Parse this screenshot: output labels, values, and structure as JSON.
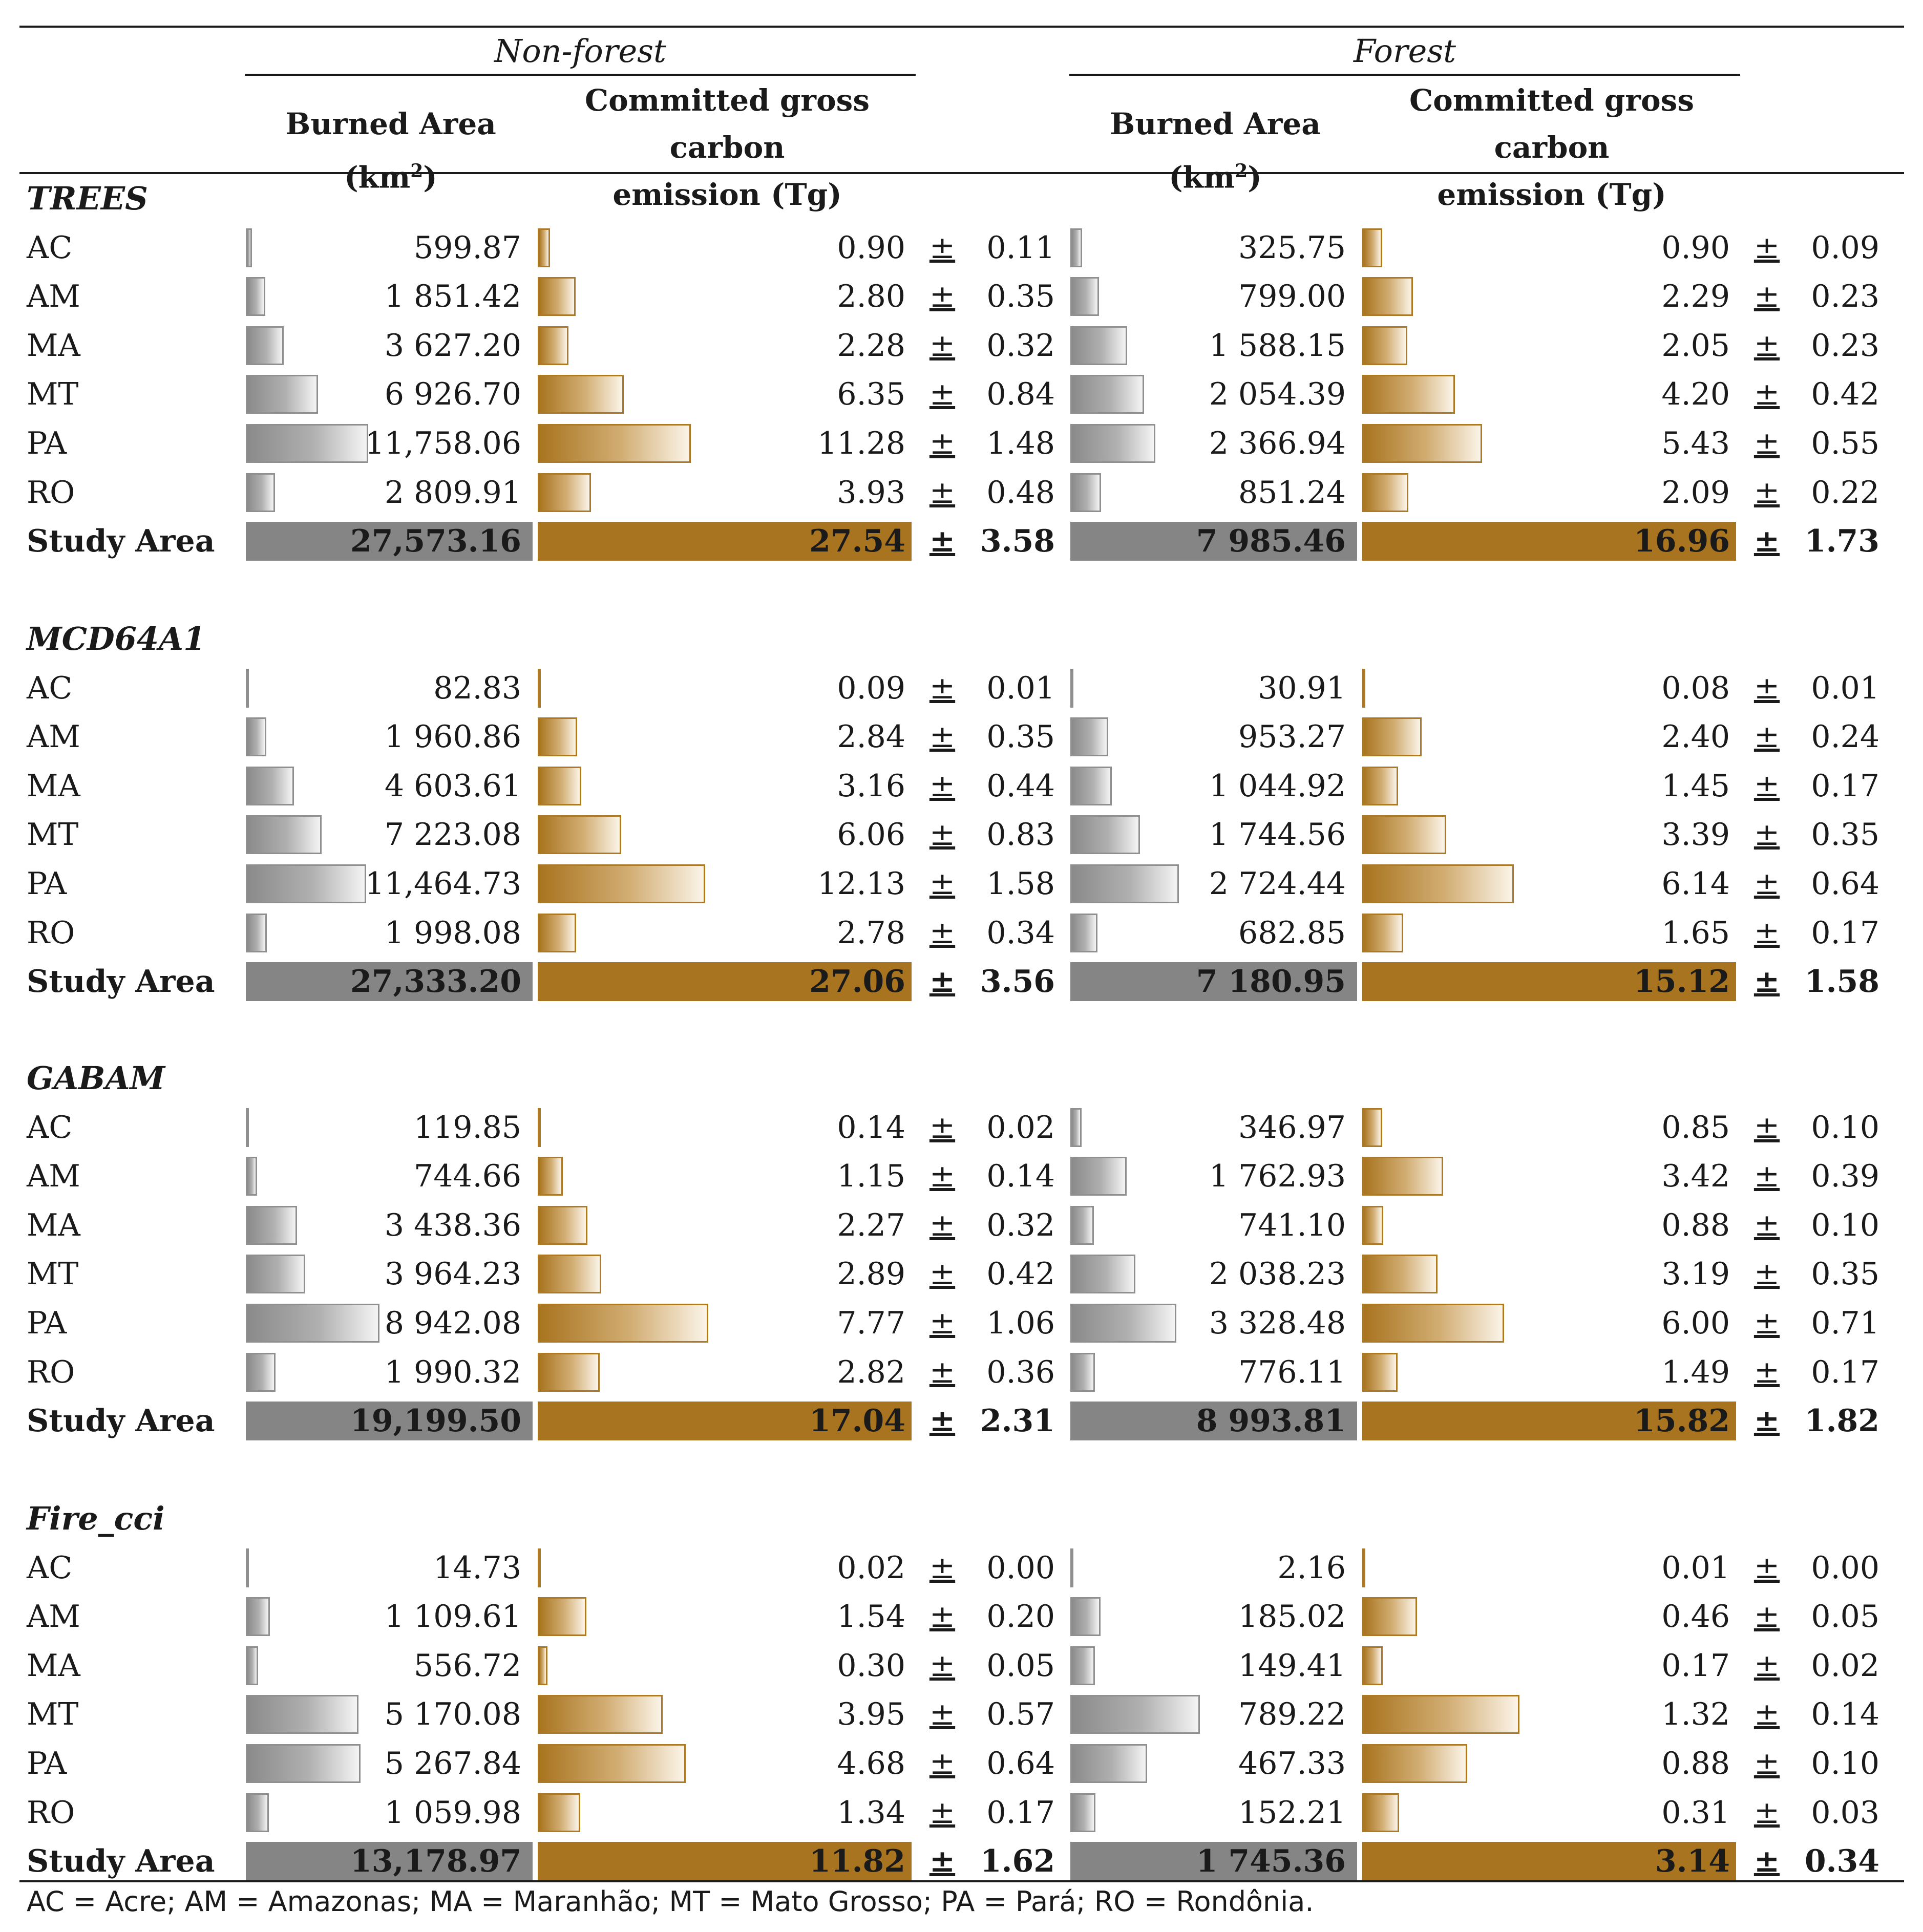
{
  "groups": {
    "non_forest": "Non-forest",
    "forest": "Forest"
  },
  "headers": {
    "burned_area_prefix": "Burned Area (km",
    "burned_area_sup": "2",
    "burned_area_suffix": ")",
    "emission_line1": "Committed gross carbon",
    "emission_line2": "emission (Tg)"
  },
  "pm_symbol": "±",
  "sections": [
    {
      "title": "TREES",
      "rows": [
        {
          "region": "AC",
          "nf_area": "599.87",
          "nf_area_v": 599.87,
          "nf_em": "0.90",
          "nf_em_v": 0.9,
          "nf_unc": "0.11",
          "f_area": "325.75",
          "f_area_v": 325.75,
          "f_em": "0.90",
          "f_em_v": 0.9,
          "f_unc": "0.09"
        },
        {
          "region": "AM",
          "nf_area": "1 851.42",
          "nf_area_v": 1851.42,
          "nf_em": "2.80",
          "nf_em_v": 2.8,
          "nf_unc": "0.35",
          "f_area": "799.00",
          "f_area_v": 799.0,
          "f_em": "2.29",
          "f_em_v": 2.29,
          "f_unc": "0.23"
        },
        {
          "region": "MA",
          "nf_area": "3 627.20",
          "nf_area_v": 3627.2,
          "nf_em": "2.28",
          "nf_em_v": 2.28,
          "nf_unc": "0.32",
          "f_area": "1 588.15",
          "f_area_v": 1588.15,
          "f_em": "2.05",
          "f_em_v": 2.05,
          "f_unc": "0.23"
        },
        {
          "region": "MT",
          "nf_area": "6 926.70",
          "nf_area_v": 6926.7,
          "nf_em": "6.35",
          "nf_em_v": 6.35,
          "nf_unc": "0.84",
          "f_area": "2 054.39",
          "f_area_v": 2054.39,
          "f_em": "4.20",
          "f_em_v": 4.2,
          "f_unc": "0.42"
        },
        {
          "region": "PA",
          "nf_area": "11,758.06",
          "nf_area_v": 11758.06,
          "nf_em": "11.28",
          "nf_em_v": 11.28,
          "nf_unc": "1.48",
          "f_area": "2 366.94",
          "f_area_v": 2366.94,
          "f_em": "5.43",
          "f_em_v": 5.43,
          "f_unc": "0.55"
        },
        {
          "region": "RO",
          "nf_area": "2 809.91",
          "nf_area_v": 2809.91,
          "nf_em": "3.93",
          "nf_em_v": 3.93,
          "nf_unc": "0.48",
          "f_area": "851.24",
          "f_area_v": 851.24,
          "f_em": "2.09",
          "f_em_v": 2.09,
          "f_unc": "0.22"
        }
      ],
      "total": {
        "region": "Study Area",
        "nf_area": "27,573.16",
        "nf_area_v": 27573.16,
        "nf_em": "27.54",
        "nf_em_v": 27.54,
        "nf_unc": "3.58",
        "f_area": "7 985.46",
        "f_area_v": 7985.46,
        "f_em": "16.96",
        "f_em_v": 16.96,
        "f_unc": "1.73"
      }
    },
    {
      "title": "MCD64A1",
      "rows": [
        {
          "region": "AC",
          "nf_area": "82.83",
          "nf_area_v": 82.83,
          "nf_em": "0.09",
          "nf_em_v": 0.09,
          "nf_unc": "0.01",
          "f_area": "30.91",
          "f_area_v": 30.91,
          "f_em": "0.08",
          "f_em_v": 0.08,
          "f_unc": "0.01"
        },
        {
          "region": "AM",
          "nf_area": "1 960.86",
          "nf_area_v": 1960.86,
          "nf_em": "2.84",
          "nf_em_v": 2.84,
          "nf_unc": "0.35",
          "f_area": "953.27",
          "f_area_v": 953.27,
          "f_em": "2.40",
          "f_em_v": 2.4,
          "f_unc": "0.24"
        },
        {
          "region": "MA",
          "nf_area": "4 603.61",
          "nf_area_v": 4603.61,
          "nf_em": "3.16",
          "nf_em_v": 3.16,
          "nf_unc": "0.44",
          "f_area": "1 044.92",
          "f_area_v": 1044.92,
          "f_em": "1.45",
          "f_em_v": 1.45,
          "f_unc": "0.17"
        },
        {
          "region": "MT",
          "nf_area": "7 223.08",
          "nf_area_v": 7223.08,
          "nf_em": "6.06",
          "nf_em_v": 6.06,
          "nf_unc": "0.83",
          "f_area": "1 744.56",
          "f_area_v": 1744.56,
          "f_em": "3.39",
          "f_em_v": 3.39,
          "f_unc": "0.35"
        },
        {
          "region": "PA",
          "nf_area": "11,464.73",
          "nf_area_v": 11464.73,
          "nf_em": "12.13",
          "nf_em_v": 12.13,
          "nf_unc": "1.58",
          "f_area": "2 724.44",
          "f_area_v": 2724.44,
          "f_em": "6.14",
          "f_em_v": 6.14,
          "f_unc": "0.64"
        },
        {
          "region": "RO",
          "nf_area": "1 998.08",
          "nf_area_v": 1998.08,
          "nf_em": "2.78",
          "nf_em_v": 2.78,
          "nf_unc": "0.34",
          "f_area": "682.85",
          "f_area_v": 682.85,
          "f_em": "1.65",
          "f_em_v": 1.65,
          "f_unc": "0.17"
        }
      ],
      "total": {
        "region": "Study Area",
        "nf_area": "27,333.20",
        "nf_area_v": 27333.2,
        "nf_em": "27.06",
        "nf_em_v": 27.06,
        "nf_unc": "3.56",
        "f_area": "7 180.95",
        "f_area_v": 7180.95,
        "f_em": "15.12",
        "f_em_v": 15.12,
        "f_unc": "1.58"
      }
    },
    {
      "title": "GABAM",
      "rows": [
        {
          "region": "AC",
          "nf_area": "119.85",
          "nf_area_v": 119.85,
          "nf_em": "0.14",
          "nf_em_v": 0.14,
          "nf_unc": "0.02",
          "f_area": "346.97",
          "f_area_v": 346.97,
          "f_em": "0.85",
          "f_em_v": 0.85,
          "f_unc": "0.10"
        },
        {
          "region": "AM",
          "nf_area": "744.66",
          "nf_area_v": 744.66,
          "nf_em": "1.15",
          "nf_em_v": 1.15,
          "nf_unc": "0.14",
          "f_area": "1 762.93",
          "f_area_v": 1762.93,
          "f_em": "3.42",
          "f_em_v": 3.42,
          "f_unc": "0.39"
        },
        {
          "region": "MA",
          "nf_area": "3 438.36",
          "nf_area_v": 3438.36,
          "nf_em": "2.27",
          "nf_em_v": 2.27,
          "nf_unc": "0.32",
          "f_area": "741.10",
          "f_area_v": 741.1,
          "f_em": "0.88",
          "f_em_v": 0.88,
          "f_unc": "0.10"
        },
        {
          "region": "MT",
          "nf_area": "3 964.23",
          "nf_area_v": 3964.23,
          "nf_em": "2.89",
          "nf_em_v": 2.89,
          "nf_unc": "0.42",
          "f_area": "2 038.23",
          "f_area_v": 2038.23,
          "f_em": "3.19",
          "f_em_v": 3.19,
          "f_unc": "0.35"
        },
        {
          "region": "PA",
          "nf_area": "8 942.08",
          "nf_area_v": 8942.08,
          "nf_em": "7.77",
          "nf_em_v": 7.77,
          "nf_unc": "1.06",
          "f_area": "3 328.48",
          "f_area_v": 3328.48,
          "f_em": "6.00",
          "f_em_v": 6.0,
          "f_unc": "0.71"
        },
        {
          "region": "RO",
          "nf_area": "1 990.32",
          "nf_area_v": 1990.32,
          "nf_em": "2.82",
          "nf_em_v": 2.82,
          "nf_unc": "0.36",
          "f_area": "776.11",
          "f_area_v": 776.11,
          "f_em": "1.49",
          "f_em_v": 1.49,
          "f_unc": "0.17"
        }
      ],
      "total": {
        "region": "Study Area",
        "nf_area": "19,199.50",
        "nf_area_v": 19199.5,
        "nf_em": "17.04",
        "nf_em_v": 17.04,
        "nf_unc": "2.31",
        "f_area": "8 993.81",
        "f_area_v": 8993.81,
        "f_em": "15.82",
        "f_em_v": 15.82,
        "f_unc": "1.82"
      }
    },
    {
      "title": "Fire_cci",
      "rows": [
        {
          "region": "AC",
          "nf_area": "14.73",
          "nf_area_v": 14.73,
          "nf_em": "0.02",
          "nf_em_v": 0.02,
          "nf_unc": "0.00",
          "f_area": "2.16",
          "f_area_v": 2.16,
          "f_em": "0.01",
          "f_em_v": 0.01,
          "f_unc": "0.00"
        },
        {
          "region": "AM",
          "nf_area": "1 109.61",
          "nf_area_v": 1109.61,
          "nf_em": "1.54",
          "nf_em_v": 1.54,
          "nf_unc": "0.20",
          "f_area": "185.02",
          "f_area_v": 185.02,
          "f_em": "0.46",
          "f_em_v": 0.46,
          "f_unc": "0.05"
        },
        {
          "region": "MA",
          "nf_area": "556.72",
          "nf_area_v": 556.72,
          "nf_em": "0.30",
          "nf_em_v": 0.3,
          "nf_unc": "0.05",
          "f_area": "149.41",
          "f_area_v": 149.41,
          "f_em": "0.17",
          "f_em_v": 0.17,
          "f_unc": "0.02"
        },
        {
          "region": "MT",
          "nf_area": "5 170.08",
          "nf_area_v": 5170.08,
          "nf_em": "3.95",
          "nf_em_v": 3.95,
          "nf_unc": "0.57",
          "f_area": "789.22",
          "f_area_v": 789.22,
          "f_em": "1.32",
          "f_em_v": 1.32,
          "f_unc": "0.14"
        },
        {
          "region": "PA",
          "nf_area": "5 267.84",
          "nf_area_v": 5267.84,
          "nf_em": "4.68",
          "nf_em_v": 4.68,
          "nf_unc": "0.64",
          "f_area": "467.33",
          "f_area_v": 467.33,
          "f_em": "0.88",
          "f_em_v": 0.88,
          "f_unc": "0.10"
        },
        {
          "region": "RO",
          "nf_area": "1 059.98",
          "nf_area_v": 1059.98,
          "nf_em": "1.34",
          "nf_em_v": 1.34,
          "nf_unc": "0.17",
          "f_area": "152.21",
          "f_area_v": 152.21,
          "f_em": "0.31",
          "f_em_v": 0.31,
          "f_unc": "0.03"
        }
      ],
      "total": {
        "region": "Study Area",
        "nf_area": "13,178.97",
        "nf_area_v": 13178.97,
        "nf_em": "11.82",
        "nf_em_v": 11.82,
        "nf_unc": "1.62",
        "f_area": "1 745.36",
        "f_area_v": 1745.36,
        "f_em": "3.14",
        "f_em_v": 3.14,
        "f_unc": "0.34"
      }
    }
  ],
  "footnote": "AC = Acre; AM = Amazonas; MA = Maranhão; MT = Mato Grosso; PA = Pará; RO = Rondônia."
}
